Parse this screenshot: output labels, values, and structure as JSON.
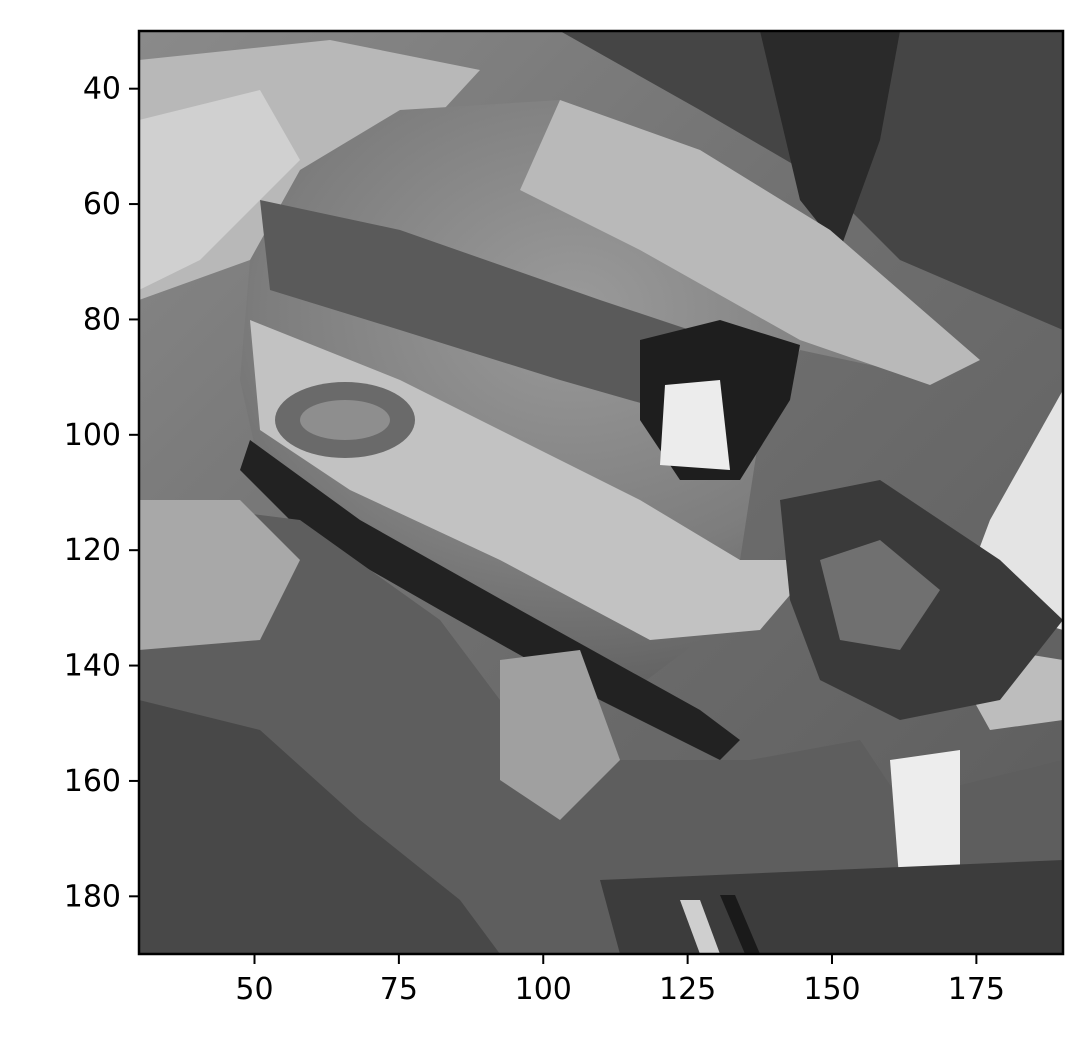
{
  "chart_data": {
    "type": "heatmap",
    "colormap": "gray",
    "image_description_hidden": true,
    "xlim": [
      30,
      190
    ],
    "ylim": [
      190,
      30
    ],
    "x_ticks": [
      50,
      75,
      100,
      125,
      150,
      175
    ],
    "y_ticks": [
      40,
      60,
      80,
      100,
      120,
      140,
      160,
      180
    ],
    "x_tick_labels": [
      "50",
      "75",
      "100",
      "125",
      "150",
      "175"
    ],
    "y_tick_labels": [
      "40",
      "60",
      "80",
      "100",
      "120",
      "140",
      "160",
      "180"
    ],
    "title": "",
    "xlabel": "",
    "ylabel": "",
    "grid": false
  }
}
